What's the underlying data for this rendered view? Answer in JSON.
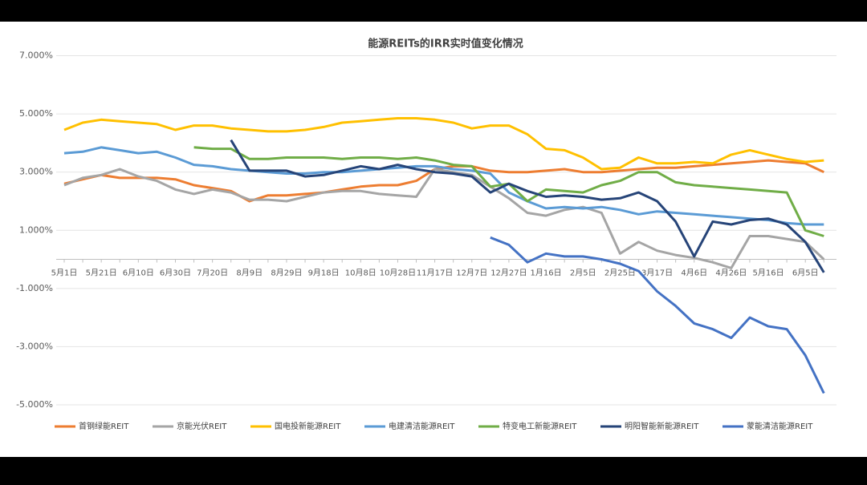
{
  "chart_data": {
    "type": "line",
    "title": "能源REITs的IRR实时值变化情况",
    "categories": [
      "5月1日",
      null,
      "5月21日",
      null,
      "6月10日",
      null,
      "6月30日",
      null,
      "7月20日",
      null,
      "8月9日",
      null,
      "8月29日",
      null,
      "9月18日",
      null,
      "10月8日",
      null,
      "10月28日",
      null,
      "11月17日",
      null,
      "12月7日",
      null,
      "12月27日",
      null,
      "1月16日",
      null,
      "2月5日",
      null,
      "2月25日",
      null,
      "3月17日",
      null,
      "4月6日",
      null,
      "4月26日",
      null,
      "5月16日",
      null,
      "6月5日",
      null
    ],
    "ylim": [
      -5,
      7
    ],
    "yticks": [
      {
        "value": 7,
        "label": "7.000%"
      },
      {
        "value": 5,
        "label": "5.000%"
      },
      {
        "value": 3,
        "label": "3.000%"
      },
      {
        "value": 1,
        "label": "1.000%"
      },
      {
        "value": -1,
        "label": "-1.000%"
      },
      {
        "value": -3,
        "label": "-3.000%"
      },
      {
        "value": -5,
        "label": "-5.000%"
      }
    ],
    "grid": true,
    "legend": "bottom",
    "series": [
      {
        "name": "首钢绿能REIT",
        "color": "#ed7d31",
        "values": [
          2.6,
          2.75,
          2.9,
          2.8,
          2.8,
          2.8,
          2.75,
          2.55,
          2.45,
          2.35,
          2.0,
          2.2,
          2.2,
          2.25,
          2.3,
          2.4,
          2.5,
          2.55,
          2.55,
          2.7,
          3.1,
          3.2,
          3.2,
          3.05,
          3.0,
          3.0,
          3.05,
          3.1,
          3.0,
          3.0,
          3.05,
          3.1,
          3.15,
          3.15,
          3.2,
          3.25,
          3.3,
          3.35,
          3.4,
          3.35,
          3.3,
          3.0
        ]
      },
      {
        "name": "京能光伏REIT",
        "color": "#a5a5a5",
        "values": [
          2.55,
          2.8,
          2.9,
          3.1,
          2.85,
          2.7,
          2.4,
          2.25,
          2.4,
          2.3,
          2.05,
          2.05,
          2.0,
          2.15,
          2.3,
          2.35,
          2.35,
          2.25,
          2.2,
          2.15,
          3.1,
          3.0,
          2.9,
          2.5,
          2.1,
          1.6,
          1.5,
          1.7,
          1.8,
          1.6,
          0.2,
          0.6,
          0.3,
          0.15,
          0.05,
          -0.1,
          -0.3,
          0.8,
          0.8,
          0.7,
          0.6,
          0.0
        ]
      },
      {
        "name": "国电投新能源REIT",
        "color": "#ffc000",
        "values": [
          4.45,
          4.7,
          4.8,
          4.75,
          4.7,
          4.65,
          4.45,
          4.6,
          4.6,
          4.5,
          4.45,
          4.4,
          4.4,
          4.45,
          4.55,
          4.7,
          4.75,
          4.8,
          4.85,
          4.85,
          4.8,
          4.7,
          4.5,
          4.6,
          4.6,
          4.3,
          3.8,
          3.75,
          3.5,
          3.1,
          3.15,
          3.5,
          3.3,
          3.3,
          3.35,
          3.3,
          3.6,
          3.75,
          3.6,
          3.45,
          3.35,
          3.4
        ]
      },
      {
        "name": "电建清洁能源REIT",
        "color": "#5b9bd5",
        "values": [
          3.65,
          3.7,
          3.85,
          3.75,
          3.65,
          3.7,
          3.5,
          3.25,
          3.2,
          3.1,
          3.05,
          3.0,
          2.95,
          2.95,
          3.0,
          3.0,
          3.05,
          3.1,
          3.15,
          3.2,
          3.2,
          3.1,
          3.05,
          2.95,
          2.3,
          2.0,
          1.75,
          1.8,
          1.75,
          1.8,
          1.7,
          1.55,
          1.65,
          1.6,
          1.55,
          1.5,
          1.45,
          1.4,
          1.35,
          1.25,
          1.2,
          1.2
        ]
      },
      {
        "name": "特变电工新能源REIT",
        "color": "#70ad47",
        "values": [
          null,
          null,
          null,
          null,
          null,
          null,
          null,
          3.85,
          3.8,
          3.8,
          3.45,
          3.45,
          3.5,
          3.5,
          3.5,
          3.45,
          3.5,
          3.5,
          3.45,
          3.5,
          3.4,
          3.25,
          3.2,
          2.5,
          2.6,
          2.0,
          2.4,
          2.35,
          2.3,
          2.55,
          2.7,
          3.0,
          3.0,
          2.65,
          2.55,
          2.5,
          2.45,
          2.4,
          2.35,
          2.3,
          1.0,
          0.8
        ]
      },
      {
        "name": "明阳智能新能源REIT",
        "color": "#264478",
        "values": [
          null,
          null,
          null,
          null,
          null,
          null,
          null,
          null,
          null,
          4.1,
          3.05,
          3.05,
          3.05,
          2.85,
          2.9,
          3.05,
          3.2,
          3.1,
          3.25,
          3.1,
          3.0,
          2.95,
          2.85,
          2.3,
          2.6,
          2.35,
          2.15,
          2.2,
          2.15,
          2.05,
          2.1,
          2.3,
          2.0,
          1.3,
          0.1,
          1.3,
          1.2,
          1.35,
          1.4,
          1.2,
          0.6,
          -0.45
        ]
      },
      {
        "name": "蒙能清洁能源REIT",
        "color": "#4472c4",
        "values": [
          null,
          null,
          null,
          null,
          null,
          null,
          null,
          null,
          null,
          null,
          null,
          null,
          null,
          null,
          null,
          null,
          null,
          null,
          null,
          null,
          null,
          null,
          null,
          0.75,
          0.5,
          -0.1,
          0.2,
          0.1,
          0.1,
          0.0,
          -0.15,
          -0.4,
          -1.1,
          -1.6,
          -2.2,
          -2.4,
          -2.7,
          -2.0,
          -2.3,
          -2.4,
          -3.3,
          -4.6
        ]
      }
    ]
  }
}
